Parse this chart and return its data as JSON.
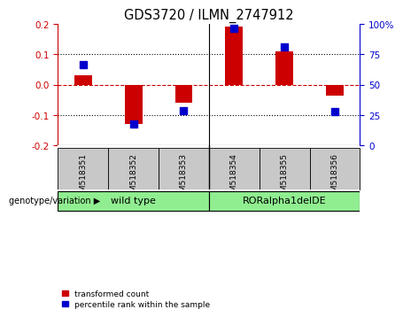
{
  "title": "GDS3720 / ILMN_2747912",
  "samples": [
    "GSM518351",
    "GSM518352",
    "GSM518353",
    "GSM518354",
    "GSM518355",
    "GSM518356"
  ],
  "red_bars": [
    0.03,
    -0.13,
    -0.06,
    0.19,
    0.11,
    -0.035
  ],
  "blue_dots": [
    0.065,
    -0.128,
    -0.085,
    0.185,
    0.125,
    -0.09
  ],
  "ylim": [
    -0.2,
    0.2
  ],
  "yticks_left": [
    -0.2,
    -0.1,
    0.0,
    0.1,
    0.2
  ],
  "yticks_right": [
    0,
    25,
    50,
    75,
    100
  ],
  "grid_lines_dotted": [
    -0.1,
    0.1
  ],
  "zero_line": 0.0,
  "groups": [
    {
      "label": "wild type",
      "start": 0,
      "end": 3,
      "color": "#90EE90"
    },
    {
      "label": "RORalpha1delDE",
      "start": 3,
      "end": 6,
      "color": "#90EE90"
    }
  ],
  "group_label": "genotype/variation",
  "legend_items": [
    {
      "label": "transformed count",
      "color": "#cc0000"
    },
    {
      "label": "percentile rank within the sample",
      "color": "#0000cc"
    }
  ],
  "bar_color": "#cc0000",
  "dot_color": "#0000cc",
  "bar_width": 0.35,
  "dot_size": 35,
  "background_color": "#ffffff",
  "plot_bg": "#ffffff",
  "right_axis_color": "#0000cc",
  "left_axis_color": "#cc0000",
  "zero_line_color": "#cc0000",
  "grid_color": "#000000",
  "label_box_color": "#c8c8c8",
  "group_box_color": "#90EE90"
}
